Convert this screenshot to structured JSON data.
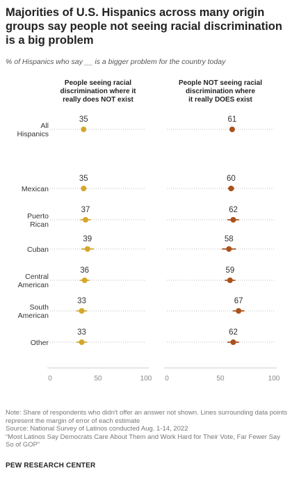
{
  "title": "Majorities of U.S. Hispanics across many origin groups say people not seeing racial discrimination is a big problem",
  "subtitle": "% of Hispanics who say __ is a bigger problem for the country today",
  "colors": {
    "left_series": "#d4a72c",
    "right_series": "#a8521c",
    "dots": "#bbbbbb",
    "axis": "#cccccc"
  },
  "chart_data": {
    "type": "scatter",
    "categories": [
      {
        "label": [
          "All",
          "Hispanics"
        ]
      },
      {
        "label": [
          "Mexican"
        ]
      },
      {
        "label": [
          "Puerto",
          "Rican"
        ]
      },
      {
        "label": [
          "Cuban"
        ]
      },
      {
        "label": [
          "Central",
          "American"
        ]
      },
      {
        "label": [
          "South",
          "American"
        ]
      },
      {
        "label": [
          "Other"
        ]
      }
    ],
    "panels": [
      {
        "title_lines": [
          "People seeing racial",
          "discrimination where it",
          "really does NOT exist"
        ],
        "values": [
          35,
          35,
          37,
          39,
          36,
          33,
          33
        ],
        "margin_of_error": [
          1.5,
          2.5,
          5,
          6,
          4.5,
          5,
          5
        ]
      },
      {
        "title_lines": [
          "People NOT seeing racial",
          "discrimination where",
          "it really DOES exist"
        ],
        "values": [
          61,
          60,
          62,
          58,
          59,
          67,
          62
        ],
        "margin_of_error": [
          1.5,
          2.5,
          5,
          6,
          4.5,
          5,
          5
        ]
      }
    ],
    "xlim": [
      0,
      100
    ],
    "xticks": [
      "0",
      "50",
      "100"
    ]
  },
  "notes": [
    "Note: Share of respondents who didn't offer an answer not shown. Lines surrounding data points represent the margin of error of each estimate",
    "Source: National Survey of Latinos conducted Aug. 1-14, 2022",
    "“Most Latinos Say Democrats Care About Them and Work Hard for Their Vote, Far Fewer Say So of GOP”"
  ],
  "source_org": "PEW RESEARCH CENTER"
}
